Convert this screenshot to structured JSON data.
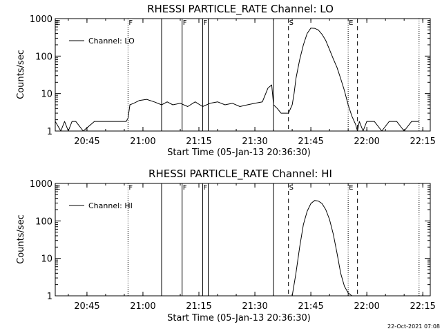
{
  "chart_data": [
    {
      "type": "line",
      "title": "RHESSI PARTICLE_RATE Channel: LO",
      "xlabel": "Start Time (05-Jan-13 20:36:30)",
      "ylabel": "Counts/sec",
      "y_scale": "log",
      "ylim": [
        1,
        1000
      ],
      "xlim": [
        "20:36:30",
        "22:17:00"
      ],
      "x_ticks": [
        "20:45",
        "21:00",
        "21:15",
        "21:30",
        "21:45",
        "22:00",
        "22:15"
      ],
      "y_ticks": [
        "1",
        "10",
        "100",
        "1000"
      ],
      "legend": {
        "label": "Channel: LO",
        "position": "top-left"
      },
      "grid": false,
      "markers": [
        {
          "time": "20:36:30",
          "letter": "E",
          "style": "none"
        },
        {
          "time": "20:56:00",
          "letter": "F",
          "style": "dotted"
        },
        {
          "time": "21:05:00",
          "letter": "",
          "style": "solid"
        },
        {
          "time": "21:10:30",
          "letter": "F",
          "style": "solid"
        },
        {
          "time": "21:16:00",
          "letter": "F",
          "style": "solid"
        },
        {
          "time": "21:17:30",
          "letter": "",
          "style": "solid"
        },
        {
          "time": "21:35:00",
          "letter": "",
          "style": "solid"
        },
        {
          "time": "21:39:00",
          "letter": "S",
          "style": "dashed"
        },
        {
          "time": "21:55:00",
          "letter": "E",
          "style": "dotted"
        },
        {
          "time": "21:57:30",
          "letter": "",
          "style": "dashed"
        },
        {
          "time": "22:14:00",
          "letter": "",
          "style": "dotted"
        }
      ],
      "series": [
        {
          "name": "Channel: LO",
          "x": [
            "20:36:30",
            "20:38:00",
            "20:39:00",
            "20:40:00",
            "20:41:00",
            "20:42:00",
            "20:44:00",
            "20:47:00",
            "20:50:00",
            "20:53:00",
            "20:55:30",
            "20:56:00",
            "20:56:30",
            "20:57:30",
            "20:59:00",
            "21:01:00",
            "21:03:00",
            "21:05:00",
            "21:06:30",
            "21:08:00",
            "21:10:00",
            "21:12:00",
            "21:14:00",
            "21:16:00",
            "21:18:00",
            "21:20:00",
            "21:22:00",
            "21:24:00",
            "21:26:00",
            "21:28:00",
            "21:30:00",
            "21:32:00",
            "21:33:30",
            "21:34:30",
            "21:35:00",
            "21:36:00",
            "21:37:00",
            "21:39:00",
            "21:40:00",
            "21:40:30",
            "21:41:00",
            "21:42:00",
            "21:43:00",
            "21:44:00",
            "21:45:00",
            "21:46:00",
            "21:47:00",
            "21:48:00",
            "21:49:00",
            "21:50:00",
            "21:51:00",
            "21:52:00",
            "21:53:00",
            "21:54:00",
            "21:55:00",
            "21:56:00",
            "21:57:00",
            "21:57:30",
            "21:58:00",
            "21:59:00",
            "22:00:00",
            "22:02:00",
            "22:04:00",
            "22:06:00",
            "22:08:00",
            "22:10:00",
            "22:12:00",
            "22:14:00"
          ],
          "y": [
            1.8,
            1,
            1.8,
            1,
            1.8,
            1.8,
            1,
            1.8,
            1.8,
            1.8,
            1.8,
            2.2,
            5,
            5.5,
            6.5,
            7,
            6,
            5,
            6,
            5,
            5.5,
            4.5,
            6,
            4.5,
            5.5,
            6,
            5,
            5.5,
            4.5,
            5,
            5.5,
            6,
            14,
            17,
            5,
            4,
            3,
            3,
            5,
            10,
            25,
            80,
            200,
            400,
            560,
            550,
            500,
            380,
            260,
            150,
            85,
            50,
            25,
            12,
            5,
            2.5,
            1.5,
            1,
            1.8,
            1,
            1.8,
            1.8,
            1,
            1.8,
            1.8,
            1,
            1.8,
            1.8
          ]
        }
      ]
    },
    {
      "type": "line",
      "title": "RHESSI PARTICLE_RATE Channel: HI",
      "xlabel": "Start Time (05-Jan-13 20:36:30)",
      "ylabel": "Counts/sec",
      "y_scale": "log",
      "ylim": [
        1,
        1000
      ],
      "xlim": [
        "20:36:30",
        "22:17:00"
      ],
      "x_ticks": [
        "20:45",
        "21:00",
        "21:15",
        "21:30",
        "21:45",
        "22:00",
        "22:15"
      ],
      "y_ticks": [
        "1",
        "10",
        "100",
        "1000"
      ],
      "legend": {
        "label": "Channel: HI",
        "position": "top-left"
      },
      "grid": false,
      "markers": [
        {
          "time": "20:36:30",
          "letter": "E",
          "style": "none"
        },
        {
          "time": "20:56:00",
          "letter": "F",
          "style": "dotted"
        },
        {
          "time": "21:05:00",
          "letter": "",
          "style": "solid"
        },
        {
          "time": "21:10:30",
          "letter": "F",
          "style": "solid"
        },
        {
          "time": "21:16:00",
          "letter": "F",
          "style": "solid"
        },
        {
          "time": "21:17:30",
          "letter": "",
          "style": "solid"
        },
        {
          "time": "21:35:00",
          "letter": "",
          "style": "solid"
        },
        {
          "time": "21:39:00",
          "letter": "S",
          "style": "dashed"
        },
        {
          "time": "21:55:00",
          "letter": "E",
          "style": "dotted"
        },
        {
          "time": "21:57:30",
          "letter": "",
          "style": "dashed"
        },
        {
          "time": "22:14:00",
          "letter": "",
          "style": "dotted"
        }
      ],
      "series": [
        {
          "name": "Channel: HI",
          "x": [
            "21:40:00",
            "21:41:00",
            "21:42:00",
            "21:43:00",
            "21:44:00",
            "21:45:00",
            "21:46:00",
            "21:47:00",
            "21:48:00",
            "21:49:00",
            "21:50:00",
            "21:51:00",
            "21:52:00",
            "21:53:00",
            "21:54:00",
            "21:55:00",
            "21:56:00"
          ],
          "y": [
            1,
            4,
            20,
            80,
            180,
            290,
            350,
            340,
            290,
            200,
            110,
            45,
            14,
            4,
            1.8,
            1.2,
            1
          ]
        }
      ]
    }
  ],
  "footer": {
    "timestamp": "22-Oct-2021 07:08"
  }
}
